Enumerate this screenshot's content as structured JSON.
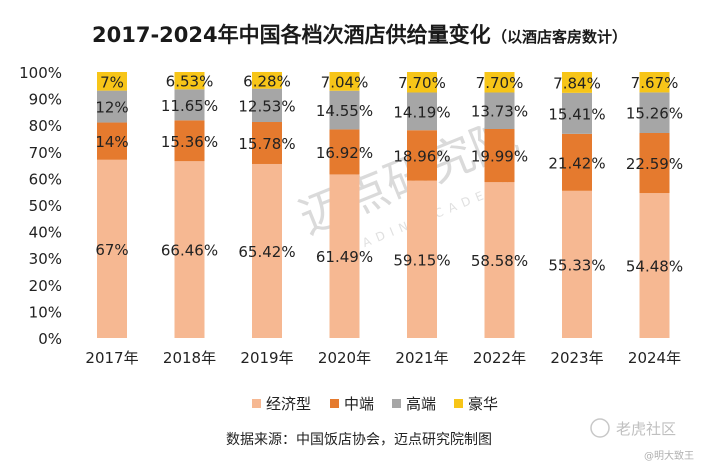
{
  "chart_data": {
    "type": "bar",
    "stacked": true,
    "title": "2017-2024年中国各档次酒店供给量变化",
    "subtitle": "（以酒店客房数计）",
    "categories": [
      "2017年",
      "2018年",
      "2019年",
      "2020年",
      "2021年",
      "2022年",
      "2023年",
      "2024年"
    ],
    "series": [
      {
        "name": "经济型",
        "color": "#f6b892",
        "values": [
          67,
          66.46,
          65.42,
          61.49,
          59.15,
          58.58,
          55.33,
          54.48
        ],
        "labels": [
          "67%",
          "66.46%",
          "65.42%",
          "61.49%",
          "59.15%",
          "58.58%",
          "55.33%",
          "54.48%"
        ]
      },
      {
        "name": "中端",
        "color": "#e57a2e",
        "values": [
          14,
          15.36,
          15.78,
          16.92,
          18.96,
          19.99,
          21.42,
          22.59
        ],
        "labels": [
          "14%",
          "15.36%",
          "15.78%",
          "16.92%",
          "18.96%",
          "19.99%",
          "21.42%",
          "22.59%"
        ]
      },
      {
        "name": "高端",
        "color": "#a6a6a6",
        "values": [
          12,
          11.65,
          12.53,
          14.55,
          14.19,
          13.73,
          15.41,
          15.26
        ],
        "labels": [
          "12%",
          "11.65%",
          "12.53%",
          "14.55%",
          "14.19%",
          "13.73%",
          "15.41%",
          "15.26%"
        ]
      },
      {
        "name": "豪华",
        "color": "#f7c518",
        "values": [
          7,
          6.53,
          6.28,
          7.04,
          7.7,
          7.7,
          7.84,
          7.67
        ],
        "labels": [
          "7%",
          "6.53%",
          "6.28%",
          "7.04%",
          "7.70%",
          "7.70%",
          "7.84%",
          "7.67%"
        ]
      }
    ],
    "yticks": [
      "0%",
      "10%",
      "20%",
      "30%",
      "40%",
      "50%",
      "60%",
      "70%",
      "80%",
      "90%",
      "100%"
    ],
    "ylim": [
      0,
      100
    ],
    "legend_position": "bottom",
    "grid": false
  },
  "source": "数据来源：中国饭店协会，迈点研究院制图",
  "watermark": {
    "brand": "迈点研究院",
    "brand_en": "MEADIN ACADEMY",
    "corner_logo": "老虎社区",
    "corner_credit": "@明大致王"
  }
}
